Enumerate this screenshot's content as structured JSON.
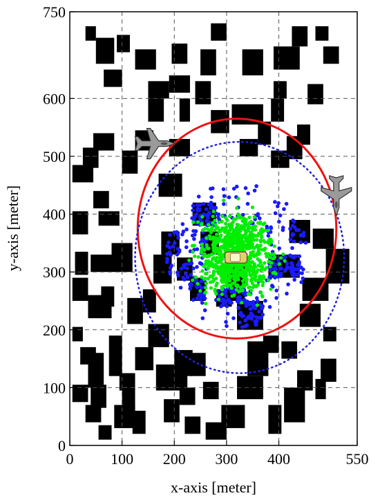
{
  "chart_data": {
    "type": "scatter",
    "title": "",
    "xlabel": "x-axis [meter]",
    "ylabel": "y-axis [meter]",
    "xlim": [
      0,
      550
    ],
    "ylim": [
      0,
      750
    ],
    "xticks": [
      0,
      100,
      200,
      300,
      400,
      550
    ],
    "yticks": [
      0,
      100,
      200,
      300,
      400,
      500,
      600,
      750
    ],
    "grid": true,
    "colors": {
      "buildings": "#000000",
      "inner_points": "#00ee00",
      "outer_points": "#1a1aff",
      "red_circle": "#ee1111",
      "blue_dotted_circle": "#2222dd",
      "grid": "#555555"
    },
    "buildings": [
      [
        5,
        455,
        40,
        30
      ],
      [
        25,
        480,
        30,
        35
      ],
      [
        45,
        510,
        40,
        30
      ],
      [
        30,
        700,
        20,
        25
      ],
      [
        50,
        660,
        35,
        45
      ],
      [
        65,
        620,
        35,
        30
      ],
      [
        90,
        680,
        25,
        30
      ],
      [
        125,
        650,
        40,
        35
      ],
      [
        150,
        600,
        40,
        30
      ],
      [
        150,
        560,
        30,
        40
      ],
      [
        125,
        510,
        35,
        35
      ],
      [
        170,
        430,
        45,
        40
      ],
      [
        100,
        470,
        30,
        40
      ],
      [
        45,
        410,
        30,
        30
      ],
      [
        55,
        380,
        40,
        25
      ],
      [
        5,
        365,
        30,
        40
      ],
      [
        10,
        295,
        25,
        40
      ],
      [
        5,
        250,
        30,
        40
      ],
      [
        40,
        300,
        40,
        30
      ],
      [
        35,
        220,
        45,
        40
      ],
      [
        80,
        300,
        40,
        50
      ],
      [
        60,
        240,
        25,
        35
      ],
      [
        5,
        180,
        20,
        25
      ],
      [
        20,
        140,
        30,
        30
      ],
      [
        35,
        100,
        30,
        60
      ],
      [
        75,
        120,
        25,
        70
      ],
      [
        40,
        65,
        30,
        40
      ],
      [
        5,
        75,
        30,
        30
      ],
      [
        95,
        95,
        30,
        30
      ],
      [
        85,
        30,
        40,
        40
      ],
      [
        30,
        40,
        30,
        30
      ],
      [
        55,
        10,
        25,
        25
      ],
      [
        110,
        210,
        30,
        45
      ],
      [
        140,
        230,
        25,
        40
      ],
      [
        150,
        170,
        40,
        40
      ],
      [
        125,
        130,
        35,
        40
      ],
      [
        100,
        60,
        25,
        40
      ],
      [
        120,
        20,
        25,
        40
      ],
      [
        165,
        95,
        60,
        45
      ],
      [
        180,
        40,
        30,
        40
      ],
      [
        200,
        120,
        35,
        45
      ],
      [
        230,
        120,
        30,
        40
      ],
      [
        210,
        70,
        30,
        30
      ],
      [
        220,
        20,
        30,
        30
      ],
      [
        255,
        80,
        30,
        30
      ],
      [
        260,
        10,
        40,
        30
      ],
      [
        290,
        30,
        45,
        40
      ],
      [
        320,
        80,
        50,
        40
      ],
      [
        340,
        120,
        40,
        60
      ],
      [
        370,
        160,
        30,
        30
      ],
      [
        405,
        150,
        30,
        30
      ],
      [
        435,
        95,
        30,
        35
      ],
      [
        470,
        80,
        20,
        35
      ],
      [
        480,
        110,
        30,
        40
      ],
      [
        410,
        40,
        40,
        60
      ],
      [
        380,
        20,
        25,
        50
      ],
      [
        440,
        205,
        40,
        40
      ],
      [
        445,
        250,
        50,
        40
      ],
      [
        485,
        180,
        25,
        25
      ],
      [
        490,
        280,
        45,
        60
      ],
      [
        465,
        340,
        40,
        35
      ],
      [
        420,
        350,
        40,
        40
      ],
      [
        380,
        290,
        60,
        40
      ],
      [
        320,
        200,
        50,
        50
      ],
      [
        280,
        240,
        30,
        30
      ],
      [
        300,
        250,
        35,
        60
      ],
      [
        230,
        250,
        30,
        40
      ],
      [
        205,
        285,
        30,
        40
      ],
      [
        250,
        330,
        35,
        40
      ],
      [
        235,
        380,
        45,
        40
      ],
      [
        160,
        280,
        35,
        50
      ],
      [
        175,
        330,
        35,
        40
      ],
      [
        190,
        500,
        40,
        30
      ],
      [
        210,
        560,
        20,
        40
      ],
      [
        270,
        540,
        35,
        40
      ],
      [
        310,
        555,
        60,
        35
      ],
      [
        325,
        500,
        35,
        30
      ],
      [
        360,
        520,
        25,
        40
      ],
      [
        385,
        480,
        35,
        30
      ],
      [
        385,
        560,
        25,
        40
      ],
      [
        415,
        495,
        30,
        40
      ],
      [
        435,
        520,
        25,
        35
      ],
      [
        455,
        590,
        30,
        35
      ],
      [
        390,
        600,
        25,
        30
      ],
      [
        390,
        650,
        50,
        40
      ],
      [
        470,
        700,
        25,
        25
      ],
      [
        485,
        660,
        30,
        30
      ],
      [
        425,
        690,
        30,
        35
      ],
      [
        330,
        640,
        40,
        45
      ],
      [
        270,
        700,
        30,
        30
      ],
      [
        250,
        640,
        30,
        45
      ],
      [
        240,
        590,
        30,
        40
      ],
      [
        190,
        610,
        40,
        30
      ],
      [
        195,
        660,
        30,
        35
      ]
    ],
    "red_circle": {
      "center": [
        320,
        375
      ],
      "radius": 190
    },
    "blue_dotted_circle": {
      "center": [
        325,
        325
      ],
      "radius": 200
    },
    "target_vehicle": {
      "position": [
        318,
        325
      ]
    },
    "aircraft": [
      {
        "position": [
          162,
          522
        ],
        "heading": "east"
      },
      {
        "position": [
          510,
          433
        ],
        "heading": "south"
      }
    ],
    "green_cloud": {
      "center": [
        318,
        330
      ],
      "spread": [
        55,
        55
      ],
      "count": 900
    },
    "blue_cloud": {
      "count": 420,
      "radius_range": [
        85,
        180
      ],
      "center": [
        320,
        330
      ]
    }
  }
}
